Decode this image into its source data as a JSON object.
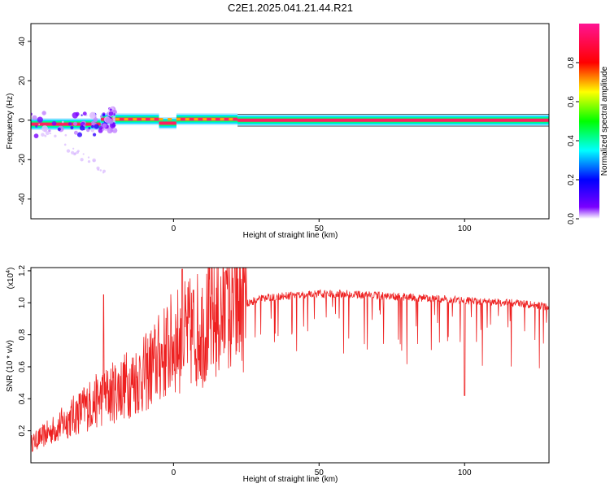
{
  "title": "C2E1.2025.041.21.44.R21",
  "colorbar": {
    "label": "Normalized spectral amplitude",
    "ticks": [
      "0.0",
      "0.2",
      "0.4",
      "0.6",
      "0.8"
    ],
    "tick_values": [
      0.0,
      0.2,
      0.4,
      0.6,
      0.8
    ],
    "range": [
      0,
      1
    ],
    "colors": [
      "#ffffff",
      "#7a00ff",
      "#0000ff",
      "#00ffff",
      "#00ff00",
      "#ffff00",
      "#ff0000",
      "#ff1493"
    ]
  },
  "chart_data": [
    {
      "type": "heatmap",
      "xlabel": "Height of straight line (km)",
      "ylabel": "Frequency (Hz)",
      "xlim": [
        -49,
        129
      ],
      "ylim": [
        -50,
        49
      ],
      "xticks": [
        0,
        50,
        100
      ],
      "xtick_labels": [
        "0",
        "50",
        "100"
      ],
      "yticks": [
        -40,
        -20,
        0,
        20,
        40
      ],
      "ytick_labels": [
        "-40",
        "-20",
        "0",
        "20",
        "40"
      ],
      "band": {
        "center_hz": 0,
        "half_width_hz": 1.5,
        "x_start": -49,
        "x_end": 129,
        "note_segments": [
          {
            "x": [
              -49,
              -25
            ],
            "center": -2,
            "scatter": true
          },
          {
            "x": [
              -25,
              -20
            ],
            "center": 0.5,
            "scatter": true
          },
          {
            "x": [
              -20,
              -5
            ],
            "center": 0.5,
            "scatter": false
          },
          {
            "x": [
              -5,
              1
            ],
            "center": -1.5,
            "scatter": false
          },
          {
            "x": [
              1,
              22
            ],
            "center": 0.5,
            "scatter": false
          },
          {
            "x": [
              22,
              129
            ],
            "center": 0,
            "scatter": false
          }
        ]
      }
    },
    {
      "type": "line",
      "xlabel": "Height of straight line (km)",
      "ylabel": "SNR (10 * v/v)",
      "y_multiplier_label": "(x10",
      "y_multiplier_exp": "4",
      "y_multiplier_close": ")",
      "xlim": [
        -49,
        129
      ],
      "ylim": [
        0.0,
        1.22
      ],
      "xticks": [
        0,
        50,
        100
      ],
      "xtick_labels": [
        "0",
        "50",
        "100"
      ],
      "yticks": [
        0.2,
        0.4,
        0.6,
        0.8,
        1.0,
        1.2
      ],
      "ytick_labels": [
        "0.2",
        "0.4",
        "0.6",
        "0.8",
        "1.0",
        "1.2"
      ],
      "line_color": "#ee2020",
      "envelope": {
        "x": [
          -49,
          -40,
          -30,
          -20,
          -10,
          0,
          10,
          20,
          25,
          30,
          40,
          50,
          60,
          70,
          80,
          90,
          100,
          110,
          120,
          129
        ],
        "y": [
          0.12,
          0.22,
          0.35,
          0.45,
          0.55,
          0.75,
          0.85,
          0.95,
          1.02,
          1.05,
          1.07,
          1.08,
          1.08,
          1.07,
          1.06,
          1.05,
          1.04,
          1.03,
          1.02,
          1.0
        ],
        "spikes": [
          [
            3,
            1.21
          ],
          [
            18,
            1.2
          ],
          [
            -24,
            1.05
          ],
          [
            100,
            0.42
          ]
        ]
      }
    }
  ]
}
